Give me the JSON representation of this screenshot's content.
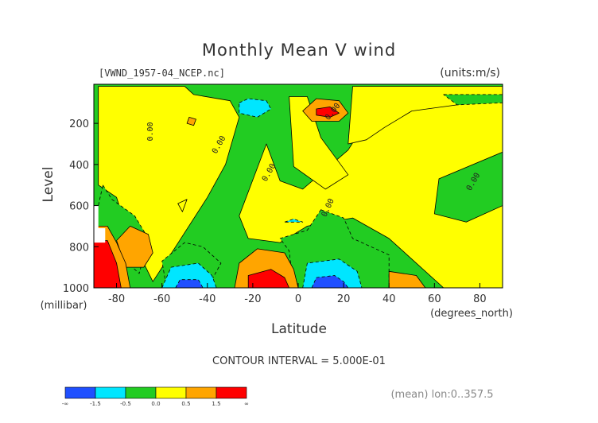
{
  "chart_data": {
    "type": "heatmap",
    "title": "Monthly Mean V wind",
    "source_label": "[VWND_1957-04_NCEP.nc]",
    "units_label": "(units:m/s)",
    "xlabel": "Latitude",
    "x_units": "(degrees_north)",
    "ylabel": "Level",
    "y_units": "(millibar)",
    "xlim": [
      -90,
      90
    ],
    "ylim": [
      1000,
      10
    ],
    "x_ticks": [
      -80,
      -60,
      -40,
      -20,
      0,
      20,
      40,
      60,
      80
    ],
    "x_tick_labels": [
      "-80",
      "-60",
      "-40",
      "-20",
      "0",
      "20",
      "40",
      "60",
      "80"
    ],
    "y_ticks": [
      200,
      400,
      600,
      800,
      1000
    ],
    "y_tick_labels": [
      "200",
      "400",
      "600",
      "800",
      "1000"
    ],
    "contour_interval_text": "CONTOUR INTERVAL = 5.000E-01",
    "average_text": "(mean) lon:0..357.5",
    "contour_label": "0.00",
    "colorbar": {
      "boundaries": [
        -1.5,
        -0.5,
        0.0,
        0.5,
        1.5
      ],
      "tick_labels": [
        "-∞",
        "-1.5",
        "-0.5",
        "0.0",
        "0.5",
        "1.5",
        "∞"
      ],
      "colors": [
        "#1f4fff",
        "#00e6ff",
        "#22cc22",
        "#ffff00",
        "#ffa500",
        "#ff0000"
      ]
    },
    "regions": [
      {
        "value": 0.25,
        "points": [
          [
            -88,
            20
          ],
          [
            -50,
            20
          ],
          [
            -46,
            60
          ],
          [
            -30,
            90
          ],
          [
            -26,
            170
          ],
          [
            -32,
            400
          ],
          [
            -40,
            560
          ],
          [
            -54,
            800
          ],
          [
            -64,
            970
          ],
          [
            -76,
            700
          ],
          [
            -80,
            560
          ],
          [
            -88,
            500
          ]
        ]
      },
      {
        "value": 0.25,
        "points": [
          [
            -14,
            300
          ],
          [
            -8,
            480
          ],
          [
            2,
            520
          ],
          [
            22,
            330
          ],
          [
            30,
            190
          ],
          [
            52,
            110
          ],
          [
            90,
            95
          ],
          [
            90,
            340
          ],
          [
            62,
            470
          ],
          [
            60,
            640
          ],
          [
            74,
            680
          ],
          [
            90,
            600
          ],
          [
            90,
            1000
          ],
          [
            64,
            1000
          ],
          [
            40,
            760
          ],
          [
            24,
            660
          ],
          [
            4,
            700
          ],
          [
            -8,
            780
          ],
          [
            -22,
            760
          ],
          [
            -26,
            650
          ]
        ]
      },
      {
        "value": 0.25,
        "points": [
          [
            -4,
            70
          ],
          [
            4,
            70
          ],
          [
            10,
            270
          ],
          [
            22,
            450
          ],
          [
            12,
            520
          ],
          [
            -2,
            410
          ]
        ]
      },
      {
        "value": 0.25,
        "points": [
          [
            24,
            20
          ],
          [
            90,
            20
          ],
          [
            90,
            80
          ],
          [
            50,
            140
          ],
          [
            38,
            220
          ],
          [
            30,
            280
          ],
          [
            22,
            300
          ]
        ]
      },
      {
        "value": -0.25,
        "points": [
          [
            -86,
            500
          ],
          [
            -82,
            570
          ],
          [
            -72,
            650
          ],
          [
            -66,
            760
          ],
          [
            -70,
            930
          ],
          [
            -84,
            790
          ],
          [
            -90,
            700
          ]
        ]
      },
      {
        "value": -0.25,
        "points": [
          [
            10,
            620
          ],
          [
            20,
            660
          ],
          [
            24,
            760
          ],
          [
            40,
            840
          ],
          [
            40,
            1000
          ],
          [
            -2,
            1000
          ],
          [
            -4,
            820
          ],
          [
            -8,
            760
          ],
          [
            4,
            720
          ]
        ]
      },
      {
        "value": -0.25,
        "points": [
          [
            -40,
            1000
          ],
          [
            -58,
            1000
          ],
          [
            -60,
            870
          ],
          [
            -50,
            780
          ],
          [
            -42,
            800
          ],
          [
            -34,
            880
          ]
        ]
      },
      {
        "value": -0.25,
        "points": [
          [
            64,
            60
          ],
          [
            90,
            60
          ],
          [
            90,
            100
          ],
          [
            70,
            110
          ]
        ]
      },
      {
        "value": 0.25,
        "points": [
          [
            -53,
            590
          ],
          [
            -51,
            630
          ],
          [
            -49,
            570
          ]
        ]
      },
      {
        "value": 0.75,
        "points": [
          [
            -28,
            1000
          ],
          [
            -26,
            880
          ],
          [
            -18,
            810
          ],
          [
            -6,
            830
          ],
          [
            -2,
            910
          ],
          [
            0,
            1000
          ]
        ]
      },
      {
        "value": 0.75,
        "points": [
          [
            -74,
            700
          ],
          [
            -66,
            740
          ],
          [
            -64,
            830
          ],
          [
            -68,
            900
          ],
          [
            -76,
            900
          ],
          [
            -80,
            770
          ]
        ]
      },
      {
        "value": 0.75,
        "points": [
          [
            -84,
            700
          ],
          [
            -80,
            780
          ],
          [
            -76,
            880
          ],
          [
            -74,
            1000
          ],
          [
            -90,
            1000
          ],
          [
            -90,
            700
          ]
        ]
      },
      {
        "value": 0.75,
        "points": [
          [
            8,
            80
          ],
          [
            18,
            90
          ],
          [
            22,
            150
          ],
          [
            18,
            190
          ],
          [
            6,
            190
          ],
          [
            2,
            140
          ]
        ]
      },
      {
        "value": 0.75,
        "points": [
          [
            40,
            920
          ],
          [
            52,
            940
          ],
          [
            56,
            1000
          ],
          [
            40,
            1000
          ]
        ]
      },
      {
        "value": 0.75,
        "points": [
          [
            -48,
            170
          ],
          [
            -45,
            180
          ],
          [
            -46,
            210
          ],
          [
            -49,
            200
          ]
        ]
      },
      {
        "value": -1.0,
        "points": [
          [
            -26,
            100
          ],
          [
            -22,
            80
          ],
          [
            -14,
            90
          ],
          [
            -12,
            130
          ],
          [
            -18,
            170
          ],
          [
            -26,
            150
          ]
        ]
      },
      {
        "value": -1.0,
        "points": [
          [
            -60,
            1000
          ],
          [
            -56,
            900
          ],
          [
            -44,
            880
          ],
          [
            -38,
            940
          ],
          [
            -36,
            1000
          ]
        ]
      },
      {
        "value": -1.0,
        "points": [
          [
            2,
            1000
          ],
          [
            4,
            880
          ],
          [
            18,
            860
          ],
          [
            26,
            920
          ],
          [
            28,
            1000
          ]
        ]
      },
      {
        "value": -1.0,
        "points": [
          [
            -6,
            680
          ],
          [
            -2,
            665
          ],
          [
            2,
            680
          ]
        ]
      },
      {
        "value": 2.0,
        "points": [
          [
            8,
            130
          ],
          [
            14,
            120
          ],
          [
            18,
            150
          ],
          [
            14,
            170
          ],
          [
            8,
            160
          ]
        ]
      },
      {
        "value": 2.0,
        "points": [
          [
            -22,
            1000
          ],
          [
            -22,
            940
          ],
          [
            -12,
            910
          ],
          [
            -6,
            950
          ],
          [
            -4,
            1000
          ]
        ]
      },
      {
        "value": 2.0,
        "points": [
          [
            -90,
            770
          ],
          [
            -84,
            770
          ],
          [
            -80,
            880
          ],
          [
            -78,
            1000
          ],
          [
            -90,
            1000
          ]
        ]
      },
      {
        "value": -2.0,
        "points": [
          [
            6,
            1000
          ],
          [
            8,
            950
          ],
          [
            16,
            940
          ],
          [
            20,
            970
          ],
          [
            22,
            1000
          ]
        ]
      },
      {
        "value": -2.0,
        "points": [
          [
            -54,
            1000
          ],
          [
            -52,
            960
          ],
          [
            -44,
            960
          ],
          [
            -42,
            1000
          ]
        ]
      }
    ],
    "missing_regions": [
      {
        "points": [
          [
            -90,
            600
          ],
          [
            -88,
            600
          ],
          [
            -88,
            710
          ],
          [
            -85,
            710
          ],
          [
            -85,
            780
          ],
          [
            -90,
            780
          ]
        ]
      }
    ]
  }
}
